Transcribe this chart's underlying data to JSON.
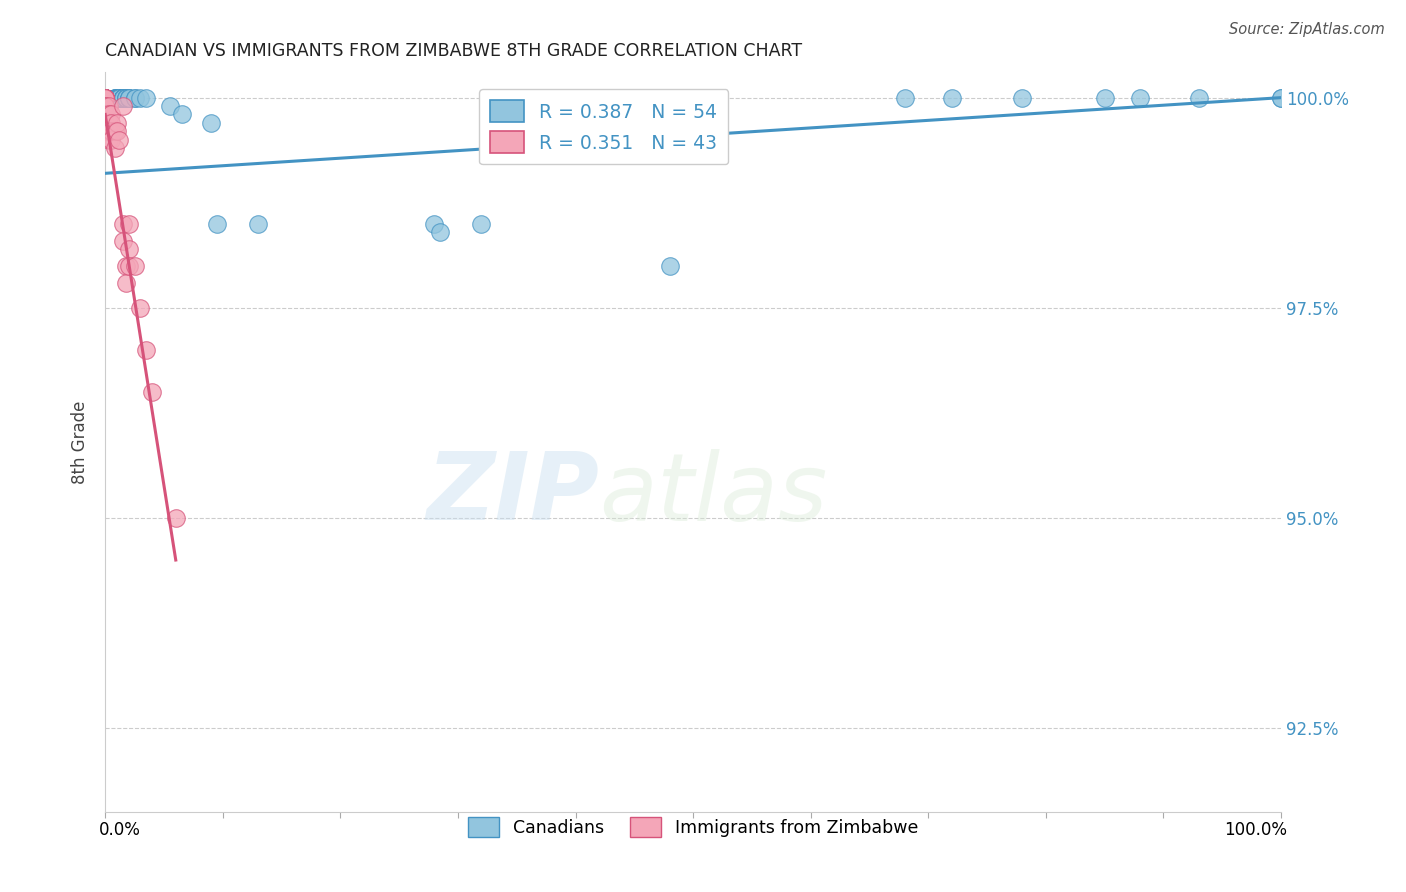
{
  "title": "CANADIAN VS IMMIGRANTS FROM ZIMBABWE 8TH GRADE CORRELATION CHART",
  "source": "Source: ZipAtlas.com",
  "ylabel": "8th Grade",
  "ylabel_right_labels": [
    "100.0%",
    "97.5%",
    "95.0%",
    "92.5%"
  ],
  "ylabel_right_positions": [
    1.0,
    0.975,
    0.95,
    0.925
  ],
  "canadians_R": 0.387,
  "canadians_N": 54,
  "zimbabwe_R": 0.351,
  "zimbabwe_N": 43,
  "blue_color": "#92c5de",
  "pink_color": "#f4a6b8",
  "blue_line_color": "#4393c3",
  "pink_line_color": "#d6537a",
  "legend_blue_color": "#92c5de",
  "legend_pink_color": "#f4a6b8",
  "watermark_zip": "ZIP",
  "watermark_atlas": "atlas",
  "canadians_x": [
    0.0,
    0.0,
    0.0,
    0.0,
    0.0,
    0.0,
    0.0,
    0.0,
    0.008,
    0.008,
    0.008,
    0.01,
    0.01,
    0.01,
    0.012,
    0.012,
    0.012,
    0.012,
    0.012,
    0.012,
    0.015,
    0.015,
    0.015,
    0.015,
    0.015,
    0.015,
    0.015,
    0.018,
    0.018,
    0.018,
    0.02,
    0.02,
    0.02,
    0.025,
    0.025,
    0.03,
    0.035,
    0.055,
    0.065,
    0.09,
    0.095,
    0.13,
    0.28,
    0.285,
    0.32,
    0.48,
    0.68,
    0.72,
    0.78,
    0.85,
    0.88,
    0.93,
    1.0,
    1.0
  ],
  "canadians_y": [
    1.0,
    1.0,
    1.0,
    1.0,
    1.0,
    1.0,
    1.0,
    1.0,
    1.0,
    1.0,
    1.0,
    1.0,
    1.0,
    1.0,
    1.0,
    1.0,
    1.0,
    1.0,
    1.0,
    1.0,
    1.0,
    1.0,
    1.0,
    1.0,
    1.0,
    1.0,
    1.0,
    1.0,
    1.0,
    1.0,
    1.0,
    1.0,
    1.0,
    1.0,
    1.0,
    1.0,
    1.0,
    0.999,
    0.998,
    0.997,
    0.985,
    0.985,
    0.985,
    0.984,
    0.985,
    0.98,
    1.0,
    1.0,
    1.0,
    1.0,
    1.0,
    1.0,
    1.0,
    1.0
  ],
  "zimbabwe_x": [
    0.0,
    0.0,
    0.0,
    0.0,
    0.0,
    0.0,
    0.0,
    0.0,
    0.0,
    0.0,
    0.0,
    0.0,
    0.0,
    0.0,
    0.0,
    0.0,
    0.003,
    0.003,
    0.003,
    0.003,
    0.003,
    0.005,
    0.005,
    0.005,
    0.005,
    0.008,
    0.008,
    0.01,
    0.01,
    0.012,
    0.015,
    0.015,
    0.015,
    0.018,
    0.018,
    0.02,
    0.02,
    0.02,
    0.025,
    0.03,
    0.035,
    0.04,
    0.06
  ],
  "zimbabwe_y": [
    1.0,
    1.0,
    1.0,
    1.0,
    1.0,
    1.0,
    1.0,
    1.0,
    1.0,
    1.0,
    0.999,
    0.999,
    0.998,
    0.998,
    0.997,
    0.996,
    0.999,
    0.998,
    0.997,
    0.996,
    0.995,
    0.998,
    0.997,
    0.996,
    0.995,
    0.996,
    0.994,
    0.997,
    0.996,
    0.995,
    0.999,
    0.985,
    0.983,
    0.98,
    0.978,
    0.985,
    0.982,
    0.98,
    0.98,
    0.975,
    0.97,
    0.965,
    0.95
  ],
  "xmin": 0.0,
  "xmax": 1.0,
  "ymin": 0.915,
  "ymax": 1.003,
  "blue_trend_x": [
    0.0,
    1.0
  ],
  "blue_trend_y": [
    0.991,
    1.0
  ],
  "pink_trend_x": [
    0.0,
    0.06
  ],
  "pink_trend_y": [
    0.998,
    0.945
  ]
}
